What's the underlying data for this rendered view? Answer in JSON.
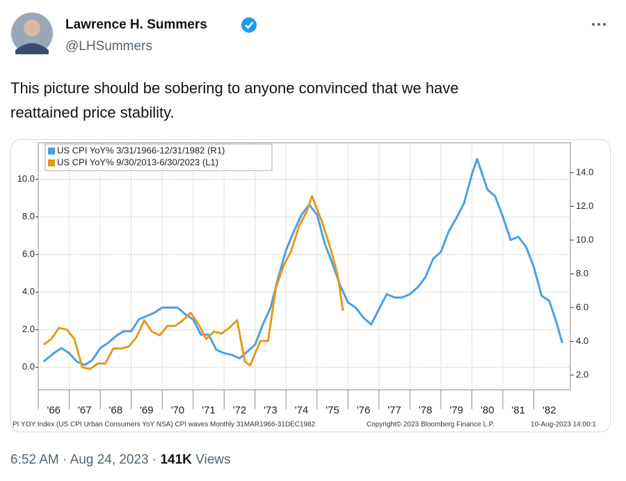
{
  "tweet": {
    "name": "Lawrence H. Summers",
    "handle": "@LHSummers",
    "text_lines": [
      "This picture should be sobering to anyone convinced that we have",
      "reattained price stability."
    ],
    "time": "6:52 AM · Aug 24, 2023 · ",
    "views_count": "141K",
    "views_label": " Views"
  },
  "chart_data": {
    "type": "line",
    "xlim": [
      1966,
      1983
    ],
    "xticks": [
      {
        "value": 1966,
        "label": "'66"
      },
      {
        "value": 1967,
        "label": "'67"
      },
      {
        "value": 1968,
        "label": "'68"
      },
      {
        "value": 1969,
        "label": "'69"
      },
      {
        "value": 1970,
        "label": "'70"
      },
      {
        "value": 1971,
        "label": "'71"
      },
      {
        "value": 1972,
        "label": "'72"
      },
      {
        "value": 1973,
        "label": "'73"
      },
      {
        "value": 1974,
        "label": "'74"
      },
      {
        "value": 1975,
        "label": "'75"
      },
      {
        "value": 1976,
        "label": "'76"
      },
      {
        "value": 1977,
        "label": "'77"
      },
      {
        "value": 1978,
        "label": "'78"
      },
      {
        "value": 1979,
        "label": "'79"
      },
      {
        "value": 1980,
        "label": "'80"
      },
      {
        "value": 1981,
        "label": "'81"
      },
      {
        "value": 1982,
        "label": "'82"
      }
    ],
    "ylim": [
      -1.2,
      11.95
    ],
    "yticks": [
      {
        "value": 0,
        "label": "0.0"
      },
      {
        "value": 2,
        "label": "2.0"
      },
      {
        "value": 4,
        "label": "4.0"
      },
      {
        "value": 6,
        "label": "6.0"
      },
      {
        "value": 8,
        "label": "8.0"
      },
      {
        "value": 10,
        "label": "10.0"
      }
    ],
    "y2lim": [
      1.13,
      15.77
    ],
    "y2ticks": [
      {
        "value": 2,
        "label": "2.0"
      },
      {
        "value": 4,
        "label": "4.0"
      },
      {
        "value": 6,
        "label": "6.0"
      },
      {
        "value": 8,
        "label": "8.0"
      },
      {
        "value": 10,
        "label": "10.0"
      },
      {
        "value": 12,
        "label": "12.0"
      },
      {
        "value": 14,
        "label": "14.0"
      }
    ],
    "grid": true,
    "legend": "top-left",
    "series": [
      {
        "name": "US CPI YoY% 3/31/1966-12/31/1982 (R1)",
        "color": "#4a9fe3",
        "axis": "y2",
        "x": [
          1966.17,
          1966.5,
          1966.75,
          1967.0,
          1967.25,
          1967.5,
          1967.75,
          1968.0,
          1968.25,
          1968.5,
          1968.75,
          1969.0,
          1969.25,
          1969.5,
          1969.75,
          1970.0,
          1970.25,
          1970.5,
          1970.75,
          1971.0,
          1971.25,
          1971.5,
          1971.75,
          1972.0,
          1972.25,
          1972.5,
          1972.75,
          1973.0,
          1973.25,
          1973.5,
          1973.75,
          1974.0,
          1974.25,
          1974.5,
          1974.75,
          1975.0,
          1975.25,
          1975.5,
          1975.75,
          1976.0,
          1976.25,
          1976.5,
          1976.75,
          1977.0,
          1977.25,
          1977.5,
          1977.75,
          1978.0,
          1978.25,
          1978.5,
          1978.75,
          1979.0,
          1979.25,
          1979.5,
          1979.75,
          1980.0,
          1980.17,
          1980.5,
          1980.75,
          1981.0,
          1981.25,
          1981.5,
          1981.75,
          1982.0,
          1982.25,
          1982.5,
          1982.75,
          1982.92
        ],
        "values": [
          2.8,
          3.3,
          3.6,
          3.3,
          2.8,
          2.6,
          2.9,
          3.6,
          3.9,
          4.3,
          4.6,
          4.6,
          5.3,
          5.5,
          5.7,
          6.0,
          6.0,
          6.0,
          5.6,
          5.3,
          4.4,
          4.4,
          3.5,
          3.3,
          3.2,
          3.0,
          3.4,
          3.8,
          5.0,
          6.0,
          7.8,
          9.4,
          10.5,
          11.5,
          12.1,
          11.5,
          9.8,
          8.6,
          7.3,
          6.3,
          6.0,
          5.4,
          5.0,
          5.9,
          6.8,
          6.6,
          6.6,
          6.8,
          7.2,
          7.8,
          8.9,
          9.3,
          10.5,
          11.3,
          12.2,
          13.9,
          14.8,
          13.0,
          12.6,
          11.4,
          10.0,
          10.2,
          9.6,
          8.4,
          6.7,
          6.4,
          5.0,
          3.9
        ]
      },
      {
        "name": "US CPI YoY% 9/30/2013-6/30/2023 (L1)",
        "color": "#e39a1c",
        "axis": "y",
        "x": [
          1966.17,
          1966.42,
          1966.67,
          1966.92,
          1967.17,
          1967.42,
          1967.67,
          1967.92,
          1968.17,
          1968.42,
          1968.67,
          1968.92,
          1969.17,
          1969.42,
          1969.67,
          1969.92,
          1970.17,
          1970.42,
          1970.67,
          1970.92,
          1971.17,
          1971.42,
          1971.67,
          1971.92,
          1972.17,
          1972.42,
          1972.67,
          1972.84,
          1973.17,
          1973.42,
          1973.67,
          1973.92,
          1974.17,
          1974.42,
          1974.67,
          1974.84,
          1975.17,
          1975.42,
          1975.67,
          1975.84
        ],
        "values": [
          1.2,
          1.5,
          2.1,
          2.0,
          1.5,
          0.0,
          -0.1,
          0.2,
          0.2,
          1.0,
          1.0,
          1.1,
          1.6,
          2.5,
          1.9,
          1.7,
          2.2,
          2.2,
          2.5,
          2.9,
          2.3,
          1.5,
          1.9,
          1.8,
          2.1,
          2.5,
          0.3,
          0.1,
          1.4,
          1.4,
          4.2,
          5.4,
          6.2,
          7.5,
          8.3,
          9.1,
          7.7,
          6.4,
          4.9,
          3.0
        ]
      }
    ],
    "footer": [
      "PI YOY Index (US CPI Urban Consumers YoY NSA) CPI waves  Monthly 31MAR1966-31DEC1982",
      "Copyright© 2023 Bloomberg Finance L.P.",
      "10-Aug-2023 14:00:1"
    ]
  }
}
